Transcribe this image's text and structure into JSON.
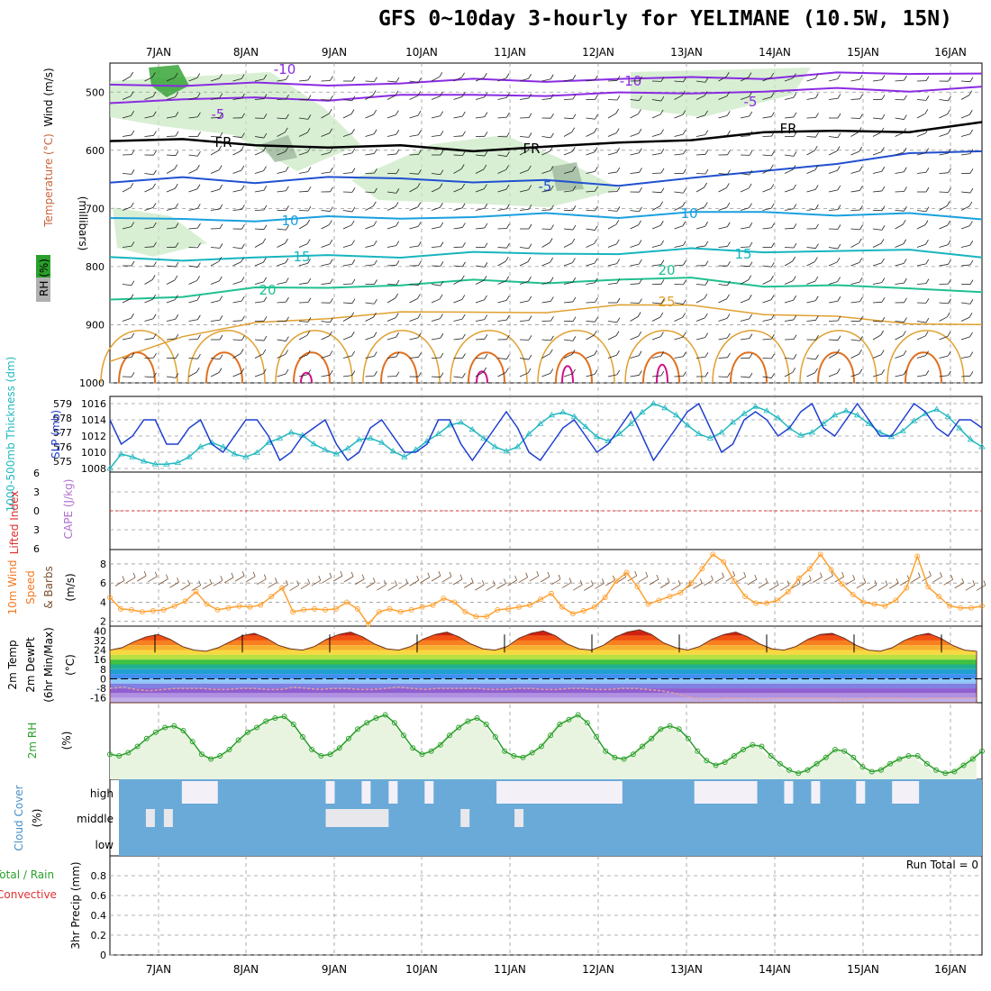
{
  "title": "GFS 0~10day 3-hourly for YELIMANE (10.5W, 15N)",
  "dates": [
    "7JAN",
    "8JAN",
    "9JAN",
    "10JAN",
    "11JAN",
    "12JAN",
    "13JAN",
    "14JAN",
    "15JAN",
    "16JAN"
  ],
  "colors": {
    "temp_cold": "#8a2be2",
    "temp_fr": "#000000",
    "temp_5": "#2050d0",
    "temp_10": "#1aa0e0",
    "temp_15": "#17b5c0",
    "temp_20": "#20c090",
    "temp_25": "#e0a030",
    "rh_fill": "#c8e8c0",
    "rh_dark": "#2aa02a",
    "slp": "#1f3fd0",
    "thick": "#20b8c0",
    "wind": "#ffa030",
    "rh2m": "#2aa02a",
    "cloud": "#6aaad8",
    "cloud_clear": "#f4f0f8"
  },
  "chart_data": [
    {
      "type": "contour",
      "panel": "upper-air",
      "ylabel": "(millibars)",
      "legend_labels": [
        "Wind (m/s)",
        "Temperature (°C)",
        "RH (%)"
      ],
      "yticks": [
        500,
        600,
        700,
        800,
        900,
        1000
      ],
      "ylim": [
        450,
        1000
      ],
      "contours": [
        {
          "label": "-10",
          "values": [
            487,
            486,
            488,
            486,
            484,
            481,
            478,
            479,
            476,
            473,
            470,
            468,
            465
          ]
        },
        {
          "label": "-5",
          "values": [
            515,
            513,
            512,
            510,
            508,
            505,
            503,
            505,
            500,
            498,
            497,
            495,
            492
          ]
        },
        {
          "label": "FR",
          "values": [
            580,
            585,
            590,
            593,
            596,
            598,
            594,
            590,
            578,
            572,
            567,
            565,
            556
          ]
        },
        {
          "label": "-5",
          "values": [
            655,
            650,
            652,
            648,
            650,
            651,
            655,
            660,
            645,
            640,
            620,
            605,
            605
          ]
        },
        {
          "label": "10",
          "values": [
            720,
            718,
            719,
            718,
            715,
            714,
            712,
            712,
            708,
            708,
            708,
            712,
            718
          ]
        },
        {
          "label": "15",
          "values": [
            788,
            786,
            785,
            783,
            780,
            778,
            778,
            775,
            773,
            773,
            772,
            775,
            780
          ]
        },
        {
          "label": "20",
          "values": [
            858,
            848,
            840,
            835,
            830,
            827,
            825,
            823,
            822,
            830,
            835,
            838,
            840
          ]
        },
        {
          "label": "25",
          "values": [
            960,
            920,
            900,
            885,
            880,
            880,
            875,
            870,
            865,
            880,
            890,
            895,
            900
          ]
        }
      ],
      "contour_label_text": [
        "-10",
        "-10",
        "-5",
        "-5",
        "FR",
        "FR",
        "FR",
        "-5",
        "10",
        "10",
        "15",
        "15",
        "20",
        "20",
        "25",
        "10",
        "10",
        "10",
        "10",
        "10"
      ]
    },
    {
      "type": "line",
      "panel": "slp-thickness",
      "ylabel_left": "1000-500mb Thickness (dm)",
      "ylabel_right": "SLP (mb)",
      "thickness_ticks": [
        575,
        576,
        577,
        578,
        579
      ],
      "slp_ticks": [
        1008,
        1010,
        1012,
        1014,
        1016
      ],
      "series": [
        {
          "name": "SLP",
          "values": [
            1014,
            1011,
            1012,
            1014,
            1014,
            1011,
            1011,
            1013,
            1014,
            1011,
            1010,
            1012,
            1014,
            1014,
            1012,
            1009,
            1010,
            1012,
            1013,
            1014,
            1011,
            1009,
            1010,
            1013,
            1014,
            1012,
            1010,
            1010,
            1011,
            1014,
            1014,
            1011,
            1009,
            1011,
            1013,
            1015,
            1013,
            1010,
            1009,
            1011,
            1013,
            1014,
            1012,
            1010,
            1011,
            1013,
            1015,
            1012,
            1009,
            1011,
            1013,
            1015,
            1016,
            1013,
            1010,
            1011,
            1014,
            1015,
            1014,
            1012,
            1013,
            1015,
            1016,
            1013,
            1012,
            1014,
            1016,
            1014,
            1012,
            1012,
            1014,
            1016,
            1015,
            1013,
            1012,
            1014,
            1014,
            1013
          ]
        },
        {
          "name": "Thickness",
          "values": [
            574.5,
            575.5,
            575.3,
            575.0,
            574.8,
            574.8,
            574.9,
            575.3,
            576.0,
            576.3,
            576.0,
            575.5,
            575.3,
            575.6,
            576.3,
            576.6,
            577.0,
            576.8,
            576.2,
            575.8,
            575.5,
            575.9,
            576.5,
            576.6,
            576.3,
            575.7,
            575.3,
            575.8,
            576.4,
            576.9,
            577.5,
            577.7,
            577.2,
            576.6,
            576.0,
            575.7,
            576.0,
            576.9,
            577.6,
            578.2,
            578.4,
            578.1,
            577.4,
            576.7,
            576.4,
            576.9,
            577.6,
            578.4,
            579.0,
            578.7,
            578.2,
            577.5,
            576.9,
            576.6,
            577.0,
            577.7,
            578.3,
            578.8,
            578.5,
            578.0,
            577.3,
            576.8,
            577.0,
            577.6,
            578.2,
            578.5,
            578.2,
            577.6,
            577.0,
            576.7,
            577.1,
            577.8,
            578.3,
            578.6,
            578.1,
            577.3,
            576.5,
            576.0
          ]
        }
      ]
    },
    {
      "type": "line",
      "panel": "cape-li",
      "ylabel_left": "Lifted Index",
      "ylabel_right": "CAPE (J/kg)",
      "yticks": [
        6,
        3,
        0,
        3,
        6
      ],
      "series": [
        {
          "name": "Lifted Index",
          "values": [
            0
          ]
        }
      ]
    },
    {
      "type": "line",
      "panel": "wind10m",
      "ylabel": "10m Wind Speed & Barbs (m/s)",
      "yticks": [
        2,
        4,
        6,
        8
      ],
      "ylim": [
        1.5,
        9.5
      ],
      "series": [
        {
          "name": "10m Wind Speed",
          "values": [
            4.5,
            3.3,
            3.2,
            3.0,
            3.1,
            3.2,
            3.6,
            4.1,
            5.1,
            3.8,
            3.2,
            3.4,
            3.6,
            3.5,
            3.7,
            4.6,
            5.5,
            3.0,
            3.2,
            3.3,
            3.2,
            3.3,
            4.0,
            3.3,
            1.7,
            3.0,
            3.3,
            3.0,
            3.2,
            3.5,
            3.7,
            4.4,
            4.0,
            3.0,
            2.5,
            2.5,
            3.2,
            3.3,
            3.5,
            3.7,
            4.3,
            4.9,
            3.5,
            2.8,
            3.1,
            3.5,
            4.5,
            6.2,
            7.1,
            5.6,
            3.8,
            4.2,
            4.6,
            5.0,
            6.0,
            7.5,
            9.0,
            8.2,
            6.2,
            4.6,
            3.9,
            3.9,
            4.2,
            5.1,
            6.5,
            7.5,
            9.0,
            7.4,
            5.9,
            4.8,
            4.0,
            3.8,
            3.6,
            4.2,
            5.5,
            8.8,
            5.6,
            4.6,
            3.6,
            3.4,
            3.4,
            3.6
          ]
        }
      ]
    },
    {
      "type": "area",
      "panel": "temp2m",
      "ylabel": "2m Temp 2m DewPt (6hr Min/Max) (°C)",
      "yticks": [
        40,
        32,
        24,
        16,
        8,
        0,
        -8,
        -16
      ],
      "ylim": [
        -20,
        44
      ],
      "series": [
        {
          "name": "2m Temp",
          "values": [
            24,
            26,
            31,
            35,
            37,
            33,
            27,
            24,
            23,
            26,
            31,
            36,
            38,
            34,
            28,
            25,
            24,
            27,
            33,
            37,
            39,
            35,
            29,
            25,
            24,
            27,
            33,
            37,
            39,
            35,
            29,
            25,
            24,
            27,
            34,
            38,
            40,
            36,
            29,
            25,
            24,
            28,
            35,
            39,
            41,
            37,
            30,
            26,
            24,
            27,
            33,
            37,
            39,
            35,
            29,
            25,
            24,
            27,
            33,
            37,
            38,
            34,
            28,
            24,
            23,
            26,
            32,
            36,
            38,
            34,
            28,
            24,
            23
          ]
        },
        {
          "name": "2m DewPt",
          "values": [
            -8,
            -7,
            -9,
            -10,
            -9,
            -8,
            -8,
            -8,
            -9,
            -9,
            -8,
            -8,
            -9,
            -9,
            -7,
            -8,
            -9,
            -8,
            -8,
            -9,
            -9,
            -8,
            -7,
            -8,
            -9,
            -8,
            -8,
            -8,
            -8,
            -9,
            -9,
            -8,
            -8,
            -9,
            -9,
            -8,
            -8,
            -9,
            -9,
            -8,
            -8,
            -9,
            -10,
            -12,
            -15,
            -17,
            -17,
            -16,
            -16,
            -17,
            -17,
            -16,
            -16,
            -16,
            -16,
            -16,
            -17,
            -17,
            -16,
            -16,
            -16,
            -17,
            -17,
            -16,
            -16,
            -16,
            -16
          ]
        }
      ]
    },
    {
      "type": "line",
      "panel": "rh2m",
      "ylabel": "2m RH (%)",
      "series": [
        {
          "name": "2m RH",
          "values": [
            28,
            27,
            29,
            33,
            38,
            42,
            45,
            46,
            43,
            36,
            28,
            25,
            27,
            31,
            37,
            42,
            45,
            49,
            51,
            52,
            47,
            39,
            31,
            27,
            28,
            32,
            38,
            44,
            48,
            51,
            53,
            48,
            40,
            32,
            28,
            30,
            34,
            40,
            45,
            49,
            51,
            47,
            39,
            30,
            27,
            26,
            29,
            33,
            40,
            47,
            50,
            53,
            48,
            39,
            30,
            26,
            25,
            28,
            33,
            38,
            44,
            46,
            44,
            38,
            30,
            24,
            21,
            23,
            27,
            31,
            34,
            33,
            27,
            22,
            18,
            16,
            18,
            22,
            26,
            31,
            30,
            26,
            20,
            17,
            18,
            22,
            25,
            27,
            27,
            22,
            18,
            16,
            17,
            21,
            25,
            30
          ]
        }
      ]
    },
    {
      "type": "bar",
      "panel": "cloud-cover",
      "ylabel": "Cloud Cover (%)",
      "levels": [
        "high",
        "middle",
        "low"
      ],
      "high_clear_segments": [
        [
          7,
          11
        ],
        [
          23,
          24
        ],
        [
          27,
          28
        ],
        [
          30,
          31
        ],
        [
          34,
          35
        ],
        [
          42,
          56
        ],
        [
          64,
          71
        ],
        [
          74,
          75
        ],
        [
          77,
          78
        ],
        [
          82,
          83
        ],
        [
          86,
          89
        ]
      ],
      "middle_clear_segments": [
        [
          3,
          4
        ],
        [
          5,
          6
        ],
        [
          23,
          30
        ],
        [
          38,
          39
        ],
        [
          44,
          45
        ]
      ]
    },
    {
      "type": "bar",
      "panel": "precip",
      "ylabel": "3hr Precip (mm)",
      "legend_labels": [
        "Total / Rain",
        "Convective"
      ],
      "yticks": [
        0,
        0.2,
        0.4,
        0.6,
        0.8
      ],
      "ylim": [
        0,
        1
      ],
      "annotation": "Run Total = 0",
      "values": []
    }
  ]
}
